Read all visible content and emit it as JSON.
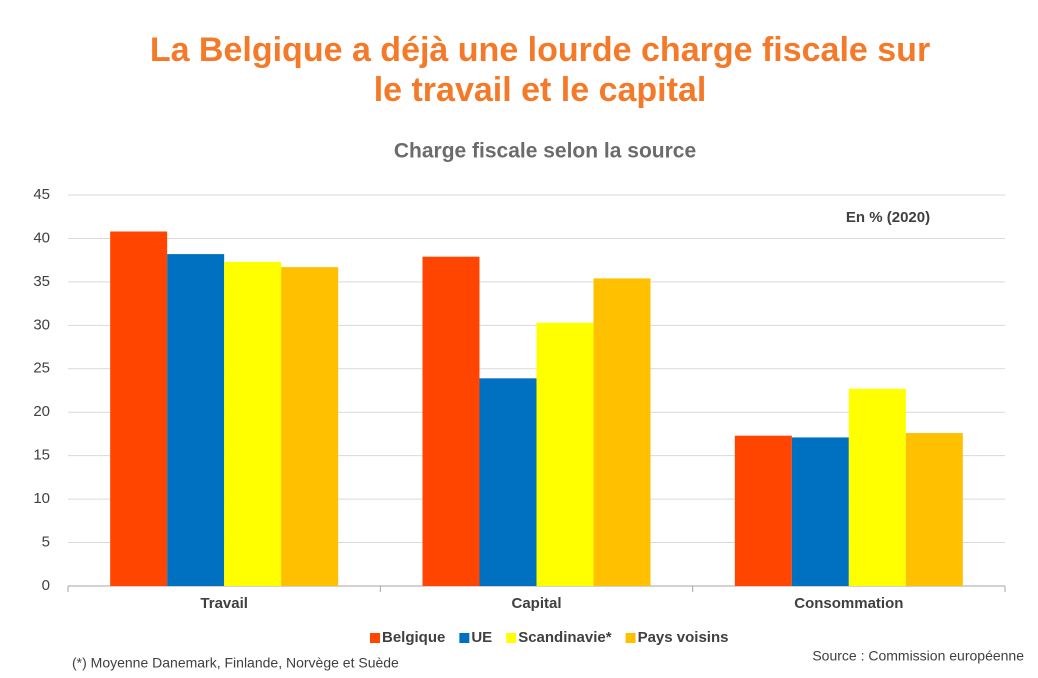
{
  "chart_data": {
    "type": "bar",
    "title": "La Belgique a déjà une lourde charge fiscale sur le travail et le capital",
    "subtitle": "Charge fiscale selon la source",
    "annotation": "En % (2020)",
    "categories": [
      "Travail",
      "Capital",
      "Consommation"
    ],
    "series": [
      {
        "name": "Belgique",
        "color": "#ff4500",
        "values": [
          40.8,
          37.9,
          17.3
        ]
      },
      {
        "name": "UE",
        "color": "#0070c0",
        "values": [
          38.2,
          23.9,
          17.1
        ]
      },
      {
        "name": "Scandinavie*",
        "color": "#ffff00",
        "values": [
          37.3,
          30.3,
          22.7
        ]
      },
      {
        "name": "Pays voisins",
        "color": "#ffc000",
        "values": [
          36.7,
          35.4,
          17.6
        ]
      }
    ],
    "ylim": [
      0,
      45
    ],
    "yticks": [
      0,
      5,
      10,
      15,
      20,
      25,
      30,
      35,
      40,
      45
    ],
    "grid": true,
    "legend": "bottom",
    "footnote": "(*) Moyenne Danemark, Finlande, Norvège et Suède",
    "source": "Source : Commission européenne"
  }
}
